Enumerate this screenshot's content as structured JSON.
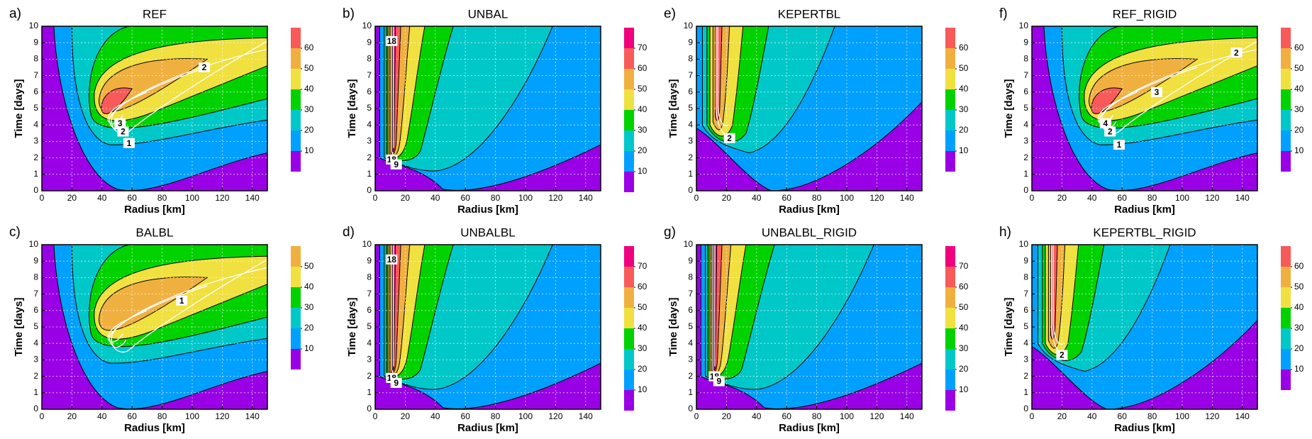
{
  "chart_data": [
    {
      "type": "contour",
      "panel_label": "a)",
      "title": "REF",
      "xlabel": "Radius [km]",
      "ylabel": "Time [days]",
      "xlim": [
        0,
        150
      ],
      "ylim": [
        0,
        10
      ],
      "xticks": [
        0,
        20,
        40,
        60,
        80,
        100,
        120,
        140
      ],
      "yticks": [
        0,
        1,
        2,
        3,
        4,
        5,
        6,
        7,
        8,
        9,
        10
      ],
      "grid": true,
      "style": "ref",
      "colorbar": {
        "lim": [
          0,
          70
        ],
        "ticks": [
          10,
          20,
          30,
          40,
          50,
          60
        ],
        "colors": [
          "#9900e6",
          "#00a0ff",
          "#00c8c8",
          "#00d200",
          "#f0e040",
          "#f0b040",
          "#f85a5a"
        ]
      },
      "contour_labels": [
        "2",
        "3",
        "2",
        "1"
      ]
    },
    {
      "type": "contour",
      "panel_label": "b)",
      "title": "UNBAL",
      "xlabel": "Radius [km]",
      "ylabel": "Time [days]",
      "xlim": [
        0,
        150
      ],
      "ylim": [
        0,
        10
      ],
      "xticks": [
        0,
        20,
        40,
        60,
        80,
        100,
        120,
        140
      ],
      "yticks": [
        0,
        1,
        2,
        3,
        4,
        5,
        6,
        7,
        8,
        9,
        10
      ],
      "grid": true,
      "style": "unbal",
      "colorbar": {
        "lim": [
          0,
          80
        ],
        "ticks": [
          10,
          20,
          30,
          40,
          50,
          60,
          70
        ],
        "colors": [
          "#9900e6",
          "#00a0ff",
          "#00c8c8",
          "#00d200",
          "#f0e040",
          "#f0b040",
          "#f85a5a",
          "#f0007f"
        ]
      },
      "contour_labels": [
        "18",
        "18",
        "9"
      ]
    },
    {
      "type": "contour",
      "panel_label": "e)",
      "title": "KEPERTBL",
      "xlabel": "Radius [km]",
      "ylabel": "Time [days]",
      "xlim": [
        0,
        150
      ],
      "ylim": [
        0,
        10
      ],
      "xticks": [
        0,
        20,
        40,
        60,
        80,
        100,
        120,
        140
      ],
      "yticks": [
        0,
        1,
        2,
        3,
        4,
        5,
        6,
        7,
        8,
        9,
        10
      ],
      "grid": true,
      "style": "kepert",
      "colorbar": {
        "lim": [
          0,
          70
        ],
        "ticks": [
          10,
          20,
          30,
          40,
          50,
          60
        ],
        "colors": [
          "#9900e6",
          "#00a0ff",
          "#00c8c8",
          "#00d200",
          "#f0e040",
          "#f0b040",
          "#f85a5a"
        ]
      },
      "contour_labels": [
        "2"
      ]
    },
    {
      "type": "contour",
      "panel_label": "f)",
      "title": "REF_RIGID",
      "xlabel": "Radius [km]",
      "ylabel": "Time [days]",
      "xlim": [
        0,
        150
      ],
      "ylim": [
        0,
        10
      ],
      "xticks": [
        0,
        20,
        40,
        60,
        80,
        100,
        120,
        140
      ],
      "yticks": [
        0,
        1,
        2,
        3,
        4,
        5,
        6,
        7,
        8,
        9,
        10
      ],
      "grid": true,
      "style": "ref",
      "colorbar": {
        "lim": [
          0,
          70
        ],
        "ticks": [
          10,
          20,
          30,
          40,
          50,
          60
        ],
        "colors": [
          "#9900e6",
          "#00a0ff",
          "#00c8c8",
          "#00d200",
          "#f0e040",
          "#f0b040",
          "#f85a5a"
        ]
      },
      "contour_labels": [
        "2",
        "3",
        "4",
        "2",
        "1"
      ]
    },
    {
      "type": "contour",
      "panel_label": "c)",
      "title": "BALBL",
      "xlabel": "Radius [km]",
      "ylabel": "Time [days]",
      "xlim": [
        0,
        150
      ],
      "ylim": [
        0,
        10
      ],
      "xticks": [
        0,
        20,
        40,
        60,
        80,
        100,
        120,
        140
      ],
      "yticks": [
        0,
        1,
        2,
        3,
        4,
        5,
        6,
        7,
        8,
        9,
        10
      ],
      "grid": true,
      "style": "ref",
      "colorbar": {
        "lim": [
          0,
          60
        ],
        "ticks": [
          10,
          20,
          30,
          40,
          50
        ],
        "colors": [
          "#9900e6",
          "#00a0ff",
          "#00c8c8",
          "#00d200",
          "#f0e040",
          "#f0b040"
        ]
      },
      "contour_labels": [
        "1"
      ]
    },
    {
      "type": "contour",
      "panel_label": "d)",
      "title": "UNBALBL",
      "xlabel": "Radius [km]",
      "ylabel": "Time [days]",
      "xlim": [
        0,
        150
      ],
      "ylim": [
        0,
        10
      ],
      "xticks": [
        0,
        20,
        40,
        60,
        80,
        100,
        120,
        140
      ],
      "yticks": [
        0,
        1,
        2,
        3,
        4,
        5,
        6,
        7,
        8,
        9,
        10
      ],
      "grid": true,
      "style": "unbal",
      "colorbar": {
        "lim": [
          0,
          80
        ],
        "ticks": [
          10,
          20,
          30,
          40,
          50,
          60,
          70
        ],
        "colors": [
          "#9900e6",
          "#00a0ff",
          "#00c8c8",
          "#00d200",
          "#f0e040",
          "#f0b040",
          "#f85a5a",
          "#f0007f"
        ]
      },
      "contour_labels": [
        "18",
        "18",
        "9"
      ]
    },
    {
      "type": "contour",
      "panel_label": "g)",
      "title": "UNBALBL_RIGID",
      "xlabel": "Radius [km]",
      "ylabel": "Time [days]",
      "xlim": [
        0,
        150
      ],
      "ylim": [
        0,
        10
      ],
      "xticks": [
        0,
        20,
        40,
        60,
        80,
        100,
        120,
        140
      ],
      "yticks": [
        0,
        1,
        2,
        3,
        4,
        5,
        6,
        7,
        8,
        9,
        10
      ],
      "grid": true,
      "style": "unbal",
      "colorbar": {
        "lim": [
          0,
          80
        ],
        "ticks": [
          10,
          20,
          30,
          40,
          50,
          60,
          70
        ],
        "colors": [
          "#9900e6",
          "#00a0ff",
          "#00c8c8",
          "#00d200",
          "#f0e040",
          "#f0b040",
          "#f85a5a",
          "#f0007f"
        ]
      },
      "contour_labels": [
        "18",
        "9"
      ]
    },
    {
      "type": "contour",
      "panel_label": "h)",
      "title": "KEPERTBL_RIGID",
      "xlabel": "Radius [km]",
      "ylabel": "Time [days]",
      "xlim": [
        0,
        150
      ],
      "ylim": [
        0,
        10
      ],
      "xticks": [
        0,
        20,
        40,
        60,
        80,
        100,
        120,
        140
      ],
      "yticks": [
        0,
        1,
        2,
        3,
        4,
        5,
        6,
        7,
        8,
        9,
        10
      ],
      "grid": true,
      "style": "kepert",
      "colorbar": {
        "lim": [
          0,
          70
        ],
        "ticks": [
          10,
          20,
          30,
          40,
          50,
          60
        ],
        "colors": [
          "#9900e6",
          "#00a0ff",
          "#00c8c8",
          "#00d200",
          "#f0e040",
          "#f0b040",
          "#f85a5a"
        ]
      },
      "contour_labels": [
        "2"
      ]
    }
  ]
}
